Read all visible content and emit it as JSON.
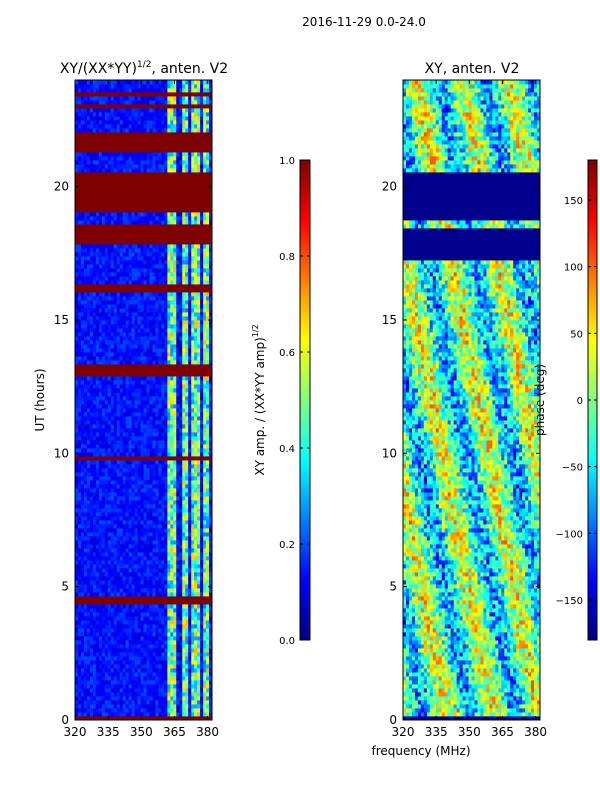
{
  "suptitle": "2016-11-29 0.0-24.0",
  "colors": {
    "jet": [
      "#00007f",
      "#0000ff",
      "#007fff",
      "#00ffff",
      "#7fff7f",
      "#ffff00",
      "#ff7f00",
      "#ff0000",
      "#7f0000"
    ],
    "axis": "#000000",
    "background": "#ffffff"
  },
  "chart_data": [
    {
      "type": "heatmap",
      "title_main": "XY/(XX*YY)",
      "title_sup": "1/2",
      "title_suffix": ", anten. V2",
      "ylabel": "UT (hours)",
      "xlabel": "",
      "xlim": [
        320,
        382
      ],
      "ylim": [
        0,
        24
      ],
      "xticks": [
        320,
        335,
        350,
        365,
        380
      ],
      "yticks": [
        0,
        5,
        10,
        15,
        20
      ],
      "cells_note": "normalized XY amplitude; saturated (1.0) rows at flagged times",
      "saturated_bands_hours": [
        [
          0.0,
          0.15
        ],
        [
          4.35,
          4.6
        ],
        [
          9.7,
          9.9
        ],
        [
          12.9,
          13.4
        ],
        [
          16.1,
          16.4
        ],
        [
          17.9,
          18.6
        ],
        [
          19.1,
          20.6
        ],
        [
          21.3,
          22.0
        ],
        [
          22.9,
          23.1
        ],
        [
          23.4,
          23.6
        ]
      ],
      "bright_feature_freq_mhz": [
        [
          362,
          366
        ],
        [
          368,
          371
        ],
        [
          373,
          376
        ],
        [
          378,
          381
        ]
      ],
      "colorbar": {
        "label_main": "XY amp. / (XX*YY amp)",
        "label_sup": "1/2",
        "range": [
          0.0,
          1.0
        ],
        "ticks": [
          "0.0",
          "0.2",
          "0.4",
          "0.6",
          "0.8",
          "1.0"
        ],
        "tick_values": [
          0.0,
          0.2,
          0.4,
          0.6,
          0.8,
          1.0
        ]
      }
    },
    {
      "type": "heatmap",
      "title": "XY, anten. V2",
      "ylabel": "",
      "xlabel": "frequency (MHz)",
      "xlim": [
        320,
        382
      ],
      "ylim": [
        0,
        24
      ],
      "xticks": [
        320,
        335,
        350,
        365,
        380
      ],
      "yticks": [
        0,
        5,
        10,
        15,
        20
      ],
      "cells_note": "XY phase in degrees",
      "flat_bands_hours": [
        [
          18.8,
          20.6
        ],
        [
          17.2,
          18.4
        ],
        [
          0.0,
          0.15
        ]
      ],
      "colorbar": {
        "label": "phase (deg)",
        "range": [
          -180,
          180
        ],
        "ticks": [
          "−150",
          "−100",
          "−50",
          "0",
          "50",
          "100",
          "150"
        ],
        "tick_values": [
          -150,
          -100,
          -50,
          0,
          50,
          100,
          150
        ]
      }
    }
  ]
}
